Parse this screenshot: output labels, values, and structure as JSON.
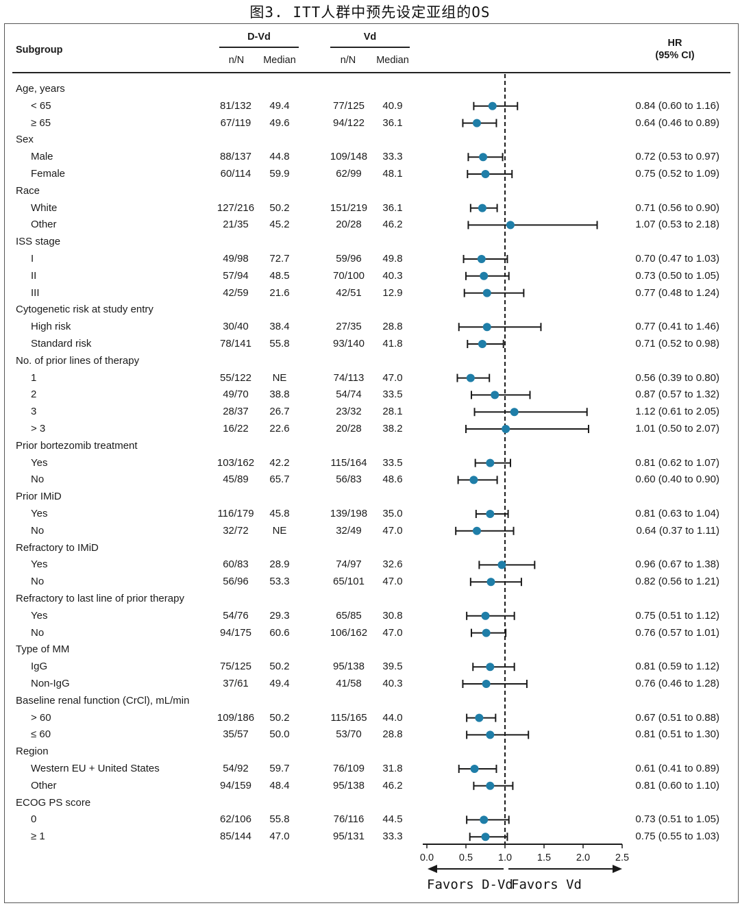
{
  "figure_title": "图3. ITT人群中预先设定亚组的OS",
  "header": {
    "subgroup": "Subgroup",
    "dvd": "D-Vd",
    "vd": "Vd",
    "nn": "n/N",
    "median": "Median",
    "hr_line1": "HR",
    "hr_line2": "(95% CI)"
  },
  "favors_left": "Favors D-Vd",
  "favors_right": "Favors Vd",
  "colors": {
    "marker": "#1f7ea8",
    "line": "#1a1a1a"
  },
  "rows": [
    {
      "type": "group",
      "label": "Age, years"
    },
    {
      "type": "item",
      "label": "< 65",
      "dvd_n": "81/132",
      "dvd_median": "49.4",
      "vd_n": "77/125",
      "vd_median": "40.9",
      "hr_text": "0.84 (0.60 to 1.16)",
      "hr": 0.84,
      "lo": 0.6,
      "hi": 1.16
    },
    {
      "type": "item",
      "label": "≥ 65",
      "dvd_n": "67/119",
      "dvd_median": "49.6",
      "vd_n": "94/122",
      "vd_median": "36.1",
      "hr_text": "0.64 (0.46 to 0.89)",
      "hr": 0.64,
      "lo": 0.46,
      "hi": 0.89
    },
    {
      "type": "group",
      "label": "Sex"
    },
    {
      "type": "item",
      "label": "Male",
      "dvd_n": "88/137",
      "dvd_median": "44.8",
      "vd_n": "109/148",
      "vd_median": "33.3",
      "hr_text": "0.72 (0.53 to 0.97)",
      "hr": 0.72,
      "lo": 0.53,
      "hi": 0.97
    },
    {
      "type": "item",
      "label": "Female",
      "dvd_n": "60/114",
      "dvd_median": "59.9",
      "vd_n": "62/99",
      "vd_median": "48.1",
      "hr_text": "0.75 (0.52 to 1.09)",
      "hr": 0.75,
      "lo": 0.52,
      "hi": 1.09
    },
    {
      "type": "group",
      "label": "Race"
    },
    {
      "type": "item",
      "label": "White",
      "dvd_n": "127/216",
      "dvd_median": "50.2",
      "vd_n": "151/219",
      "vd_median": "36.1",
      "hr_text": "0.71 (0.56 to 0.90)",
      "hr": 0.71,
      "lo": 0.56,
      "hi": 0.9
    },
    {
      "type": "item",
      "label": "Other",
      "dvd_n": "21/35",
      "dvd_median": "45.2",
      "vd_n": "20/28",
      "vd_median": "46.2",
      "hr_text": "1.07 (0.53 to 2.18)",
      "hr": 1.07,
      "lo": 0.53,
      "hi": 2.18
    },
    {
      "type": "group",
      "label": "ISS stage"
    },
    {
      "type": "item",
      "label": "I",
      "dvd_n": "49/98",
      "dvd_median": "72.7",
      "vd_n": "59/96",
      "vd_median": "49.8",
      "hr_text": "0.70 (0.47 to 1.03)",
      "hr": 0.7,
      "lo": 0.47,
      "hi": 1.03
    },
    {
      "type": "item",
      "label": "II",
      "dvd_n": "57/94",
      "dvd_median": "48.5",
      "vd_n": "70/100",
      "vd_median": "40.3",
      "hr_text": "0.73 (0.50 to 1.05)",
      "hr": 0.73,
      "lo": 0.5,
      "hi": 1.05
    },
    {
      "type": "item",
      "label": "III",
      "dvd_n": "42/59",
      "dvd_median": "21.6",
      "vd_n": "42/51",
      "vd_median": "12.9",
      "hr_text": "0.77 (0.48 to 1.24)",
      "hr": 0.77,
      "lo": 0.48,
      "hi": 1.24
    },
    {
      "type": "group",
      "label": "Cytogenetic risk at study entry"
    },
    {
      "type": "item",
      "label": "High risk",
      "dvd_n": "30/40",
      "dvd_median": "38.4",
      "vd_n": "27/35",
      "vd_median": "28.8",
      "hr_text": "0.77 (0.41 to 1.46)",
      "hr": 0.77,
      "lo": 0.41,
      "hi": 1.46
    },
    {
      "type": "item",
      "label": "Standard risk",
      "dvd_n": "78/141",
      "dvd_median": "55.8",
      "vd_n": "93/140",
      "vd_median": "41.8",
      "hr_text": "0.71 (0.52 to 0.98)",
      "hr": 0.71,
      "lo": 0.52,
      "hi": 0.98
    },
    {
      "type": "group",
      "label": "No. of prior lines of therapy"
    },
    {
      "type": "item",
      "label": "1",
      "dvd_n": "55/122",
      "dvd_median": "NE",
      "vd_n": "74/113",
      "vd_median": "47.0",
      "hr_text": "0.56 (0.39 to 0.80)",
      "hr": 0.56,
      "lo": 0.39,
      "hi": 0.8
    },
    {
      "type": "item",
      "label": "2",
      "dvd_n": "49/70",
      "dvd_median": "38.8",
      "vd_n": "54/74",
      "vd_median": "33.5",
      "hr_text": "0.87 (0.57 to 1.32)",
      "hr": 0.87,
      "lo": 0.57,
      "hi": 1.32
    },
    {
      "type": "item",
      "label": "3",
      "dvd_n": "28/37",
      "dvd_median": "26.7",
      "vd_n": "23/32",
      "vd_median": "28.1",
      "hr_text": "1.12 (0.61 to 2.05)",
      "hr": 1.12,
      "lo": 0.61,
      "hi": 2.05
    },
    {
      "type": "item",
      "label": "> 3",
      "dvd_n": "16/22",
      "dvd_median": "22.6",
      "vd_n": "20/28",
      "vd_median": "38.2",
      "hr_text": "1.01 (0.50 to 2.07)",
      "hr": 1.01,
      "lo": 0.5,
      "hi": 2.07
    },
    {
      "type": "group",
      "label": "Prior bortezomib treatment"
    },
    {
      "type": "item",
      "label": "Yes",
      "dvd_n": "103/162",
      "dvd_median": "42.2",
      "vd_n": "115/164",
      "vd_median": "33.5",
      "hr_text": "0.81 (0.62 to 1.07)",
      "hr": 0.81,
      "lo": 0.62,
      "hi": 1.07
    },
    {
      "type": "item",
      "label": "No",
      "dvd_n": "45/89",
      "dvd_median": "65.7",
      "vd_n": "56/83",
      "vd_median": "48.6",
      "hr_text": "0.60 (0.40 to 0.90)",
      "hr": 0.6,
      "lo": 0.4,
      "hi": 0.9
    },
    {
      "type": "group",
      "label": "Prior IMiD"
    },
    {
      "type": "item",
      "label": "Yes",
      "dvd_n": "116/179",
      "dvd_median": "45.8",
      "vd_n": "139/198",
      "vd_median": "35.0",
      "hr_text": "0.81 (0.63 to 1.04)",
      "hr": 0.81,
      "lo": 0.63,
      "hi": 1.04
    },
    {
      "type": "item",
      "label": "No",
      "dvd_n": "32/72",
      "dvd_median": "NE",
      "vd_n": "32/49",
      "vd_median": "47.0",
      "hr_text": "0.64 (0.37 to 1.11)",
      "hr": 0.64,
      "lo": 0.37,
      "hi": 1.11
    },
    {
      "type": "group",
      "label": "Refractory to IMiD"
    },
    {
      "type": "item",
      "label": "Yes",
      "dvd_n": "60/83",
      "dvd_median": "28.9",
      "vd_n": "74/97",
      "vd_median": "32.6",
      "hr_text": "0.96 (0.67 to 1.38)",
      "hr": 0.96,
      "lo": 0.67,
      "hi": 1.38
    },
    {
      "type": "item",
      "label": "No",
      "dvd_n": "56/96",
      "dvd_median": "53.3",
      "vd_n": "65/101",
      "vd_median": "47.0",
      "hr_text": "0.82 (0.56 to 1.21)",
      "hr": 0.82,
      "lo": 0.56,
      "hi": 1.21
    },
    {
      "type": "group",
      "label": "Refractory to last line of prior therapy"
    },
    {
      "type": "item",
      "label": "Yes",
      "dvd_n": "54/76",
      "dvd_median": "29.3",
      "vd_n": "65/85",
      "vd_median": "30.8",
      "hr_text": "0.75 (0.51 to 1.12)",
      "hr": 0.75,
      "lo": 0.51,
      "hi": 1.12
    },
    {
      "type": "item",
      "label": "No",
      "dvd_n": "94/175",
      "dvd_median": "60.6",
      "vd_n": "106/162",
      "vd_median": "47.0",
      "hr_text": "0.76 (0.57 to 1.01)",
      "hr": 0.76,
      "lo": 0.57,
      "hi": 1.01
    },
    {
      "type": "group",
      "label": "Type of MM"
    },
    {
      "type": "item",
      "label": "IgG",
      "dvd_n": "75/125",
      "dvd_median": "50.2",
      "vd_n": "95/138",
      "vd_median": "39.5",
      "hr_text": "0.81 (0.59 to 1.12)",
      "hr": 0.81,
      "lo": 0.59,
      "hi": 1.12
    },
    {
      "type": "item",
      "label": "Non-IgG",
      "dvd_n": "37/61",
      "dvd_median": "49.4",
      "vd_n": "41/58",
      "vd_median": "40.3",
      "hr_text": "0.76 (0.46 to 1.28)",
      "hr": 0.76,
      "lo": 0.46,
      "hi": 1.28
    },
    {
      "type": "group",
      "label": "Baseline renal function (CrCl), mL/min"
    },
    {
      "type": "item",
      "label": "> 60",
      "dvd_n": "109/186",
      "dvd_median": "50.2",
      "vd_n": "115/165",
      "vd_median": "44.0",
      "hr_text": "0.67 (0.51 to 0.88)",
      "hr": 0.67,
      "lo": 0.51,
      "hi": 0.88
    },
    {
      "type": "item",
      "label": "≤ 60",
      "dvd_n": "35/57",
      "dvd_median": "50.0",
      "vd_n": "53/70",
      "vd_median": "28.8",
      "hr_text": "0.81 (0.51 to 1.30)",
      "hr": 0.81,
      "lo": 0.51,
      "hi": 1.3
    },
    {
      "type": "group",
      "label": "Region"
    },
    {
      "type": "item",
      "label": "Western EU + United States",
      "dvd_n": "54/92",
      "dvd_median": "59.7",
      "vd_n": "76/109",
      "vd_median": "31.8",
      "hr_text": "0.61 (0.41 to 0.89)",
      "hr": 0.61,
      "lo": 0.41,
      "hi": 0.89
    },
    {
      "type": "item",
      "label": "Other",
      "dvd_n": "94/159",
      "dvd_median": "48.4",
      "vd_n": "95/138",
      "vd_median": "46.2",
      "hr_text": "0.81 (0.60 to 1.10)",
      "hr": 0.81,
      "lo": 0.6,
      "hi": 1.1
    },
    {
      "type": "group",
      "label": "ECOG PS score"
    },
    {
      "type": "item",
      "label": "0",
      "dvd_n": "62/106",
      "dvd_median": "55.8",
      "vd_n": "76/116",
      "vd_median": "44.5",
      "hr_text": "0.73 (0.51 to 1.05)",
      "hr": 0.73,
      "lo": 0.51,
      "hi": 1.05
    },
    {
      "type": "item",
      "label": "≥ 1",
      "dvd_n": "85/144",
      "dvd_median": "47.0",
      "vd_n": "95/131",
      "vd_median": "33.3",
      "hr_text": "0.75 (0.55 to 1.03)",
      "hr": 0.75,
      "lo": 0.55,
      "hi": 1.03
    }
  ],
  "chart_data": {
    "type": "forest",
    "title": "图3. ITT人群中预先设定亚组的OS",
    "xlabel": "HR (95% CI)",
    "xlim": [
      0.0,
      2.5
    ],
    "xticks": [
      "0.0",
      "0.5",
      "1.0",
      "1.5",
      "2.0",
      "2.5"
    ],
    "reference_line": 1.0,
    "annotations": [
      "Favors D-Vd",
      "Favors Vd"
    ],
    "series": [
      {
        "name": "Hazard ratio",
        "source": "rows"
      }
    ]
  }
}
